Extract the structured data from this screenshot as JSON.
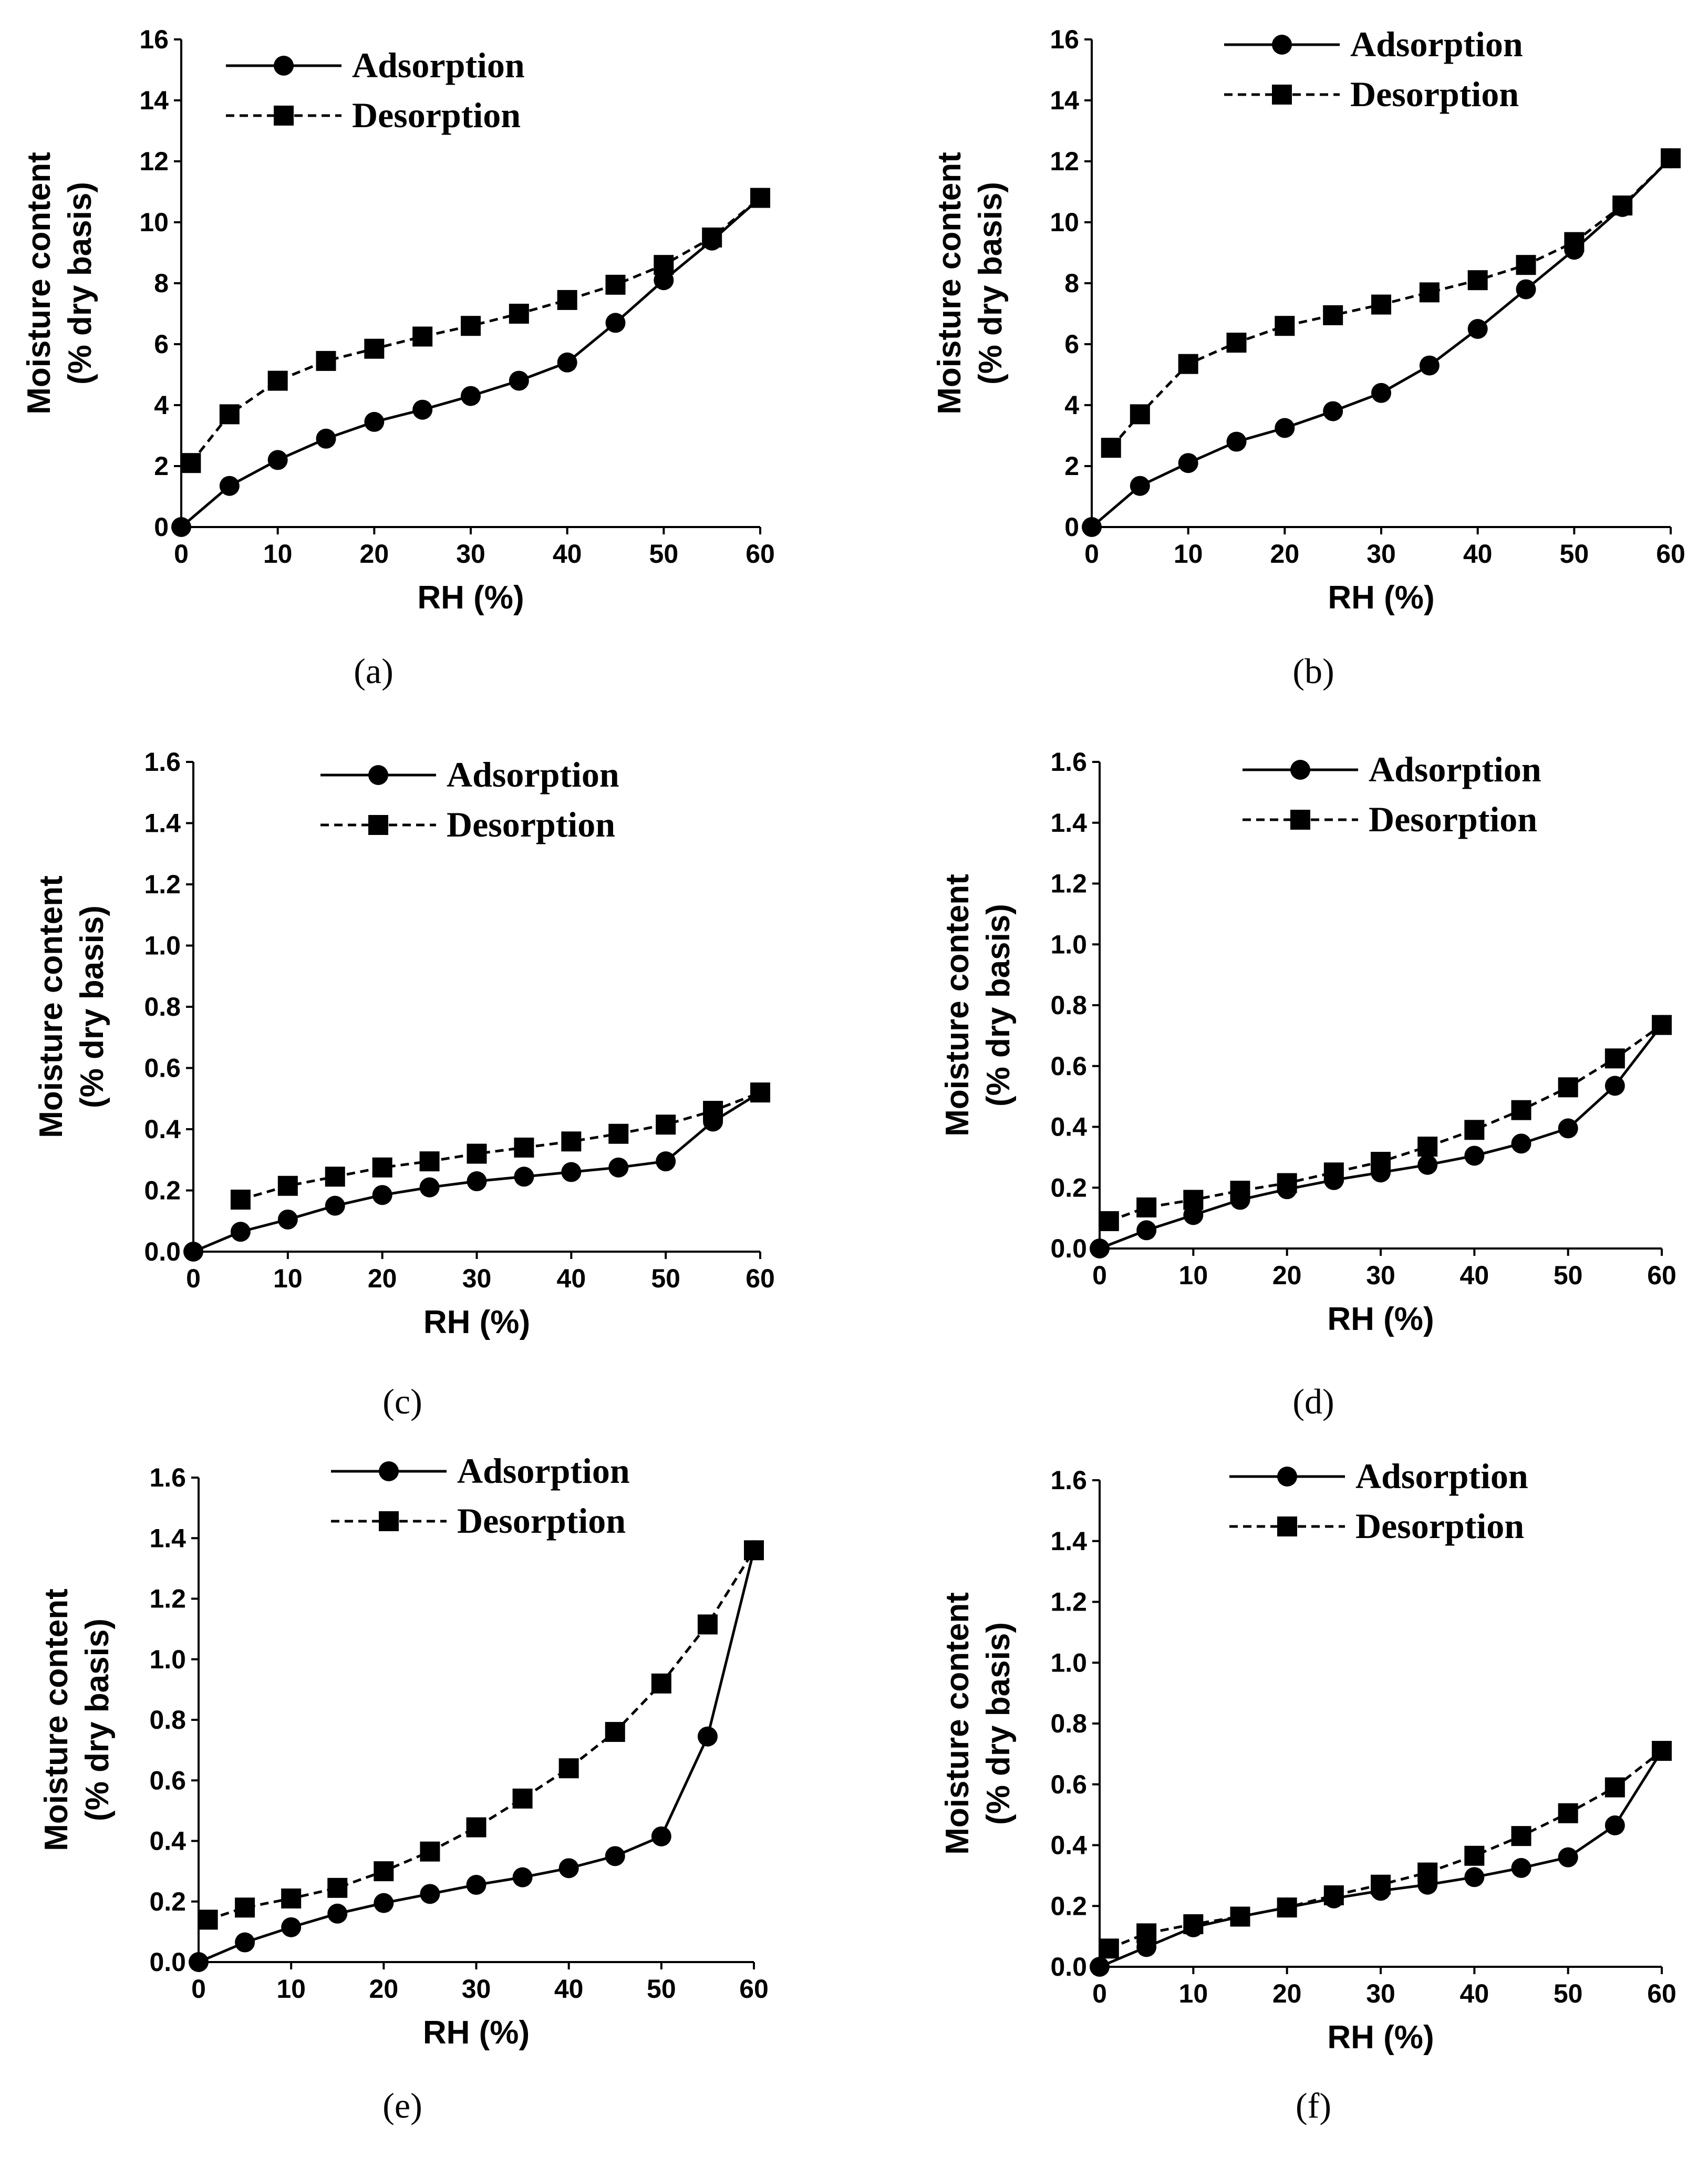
{
  "chart_data": [
    {
      "type": "line",
      "caption": "(a)",
      "xlabel": "RH (%)",
      "ylabel": [
        "Moisture content",
        "(% dry basis)"
      ],
      "xlim": [
        0,
        60
      ],
      "ylim": [
        0,
        16
      ],
      "xticks": [
        "0",
        "10",
        "20",
        "30",
        "40",
        "50",
        "60"
      ],
      "yticks": [
        "0",
        "2",
        "4",
        "6",
        "8",
        "10",
        "12",
        "14",
        "16"
      ],
      "legend": "top-left",
      "series": [
        {
          "name": "Adsorption",
          "marker": "circle",
          "style": "solid",
          "x": [
            0,
            5,
            10,
            15,
            20,
            25,
            30,
            35,
            40,
            45,
            50,
            55,
            60
          ],
          "y": [
            0,
            1.35,
            2.2,
            2.9,
            3.45,
            3.85,
            4.3,
            4.8,
            5.4,
            6.7,
            8.1,
            9.4,
            10.8
          ]
        },
        {
          "name": "Desorption",
          "marker": "square",
          "style": "dashed",
          "x": [
            1,
            5,
            10,
            15,
            20,
            25,
            30,
            35,
            40,
            45,
            50,
            55,
            60
          ],
          "y": [
            2.1,
            3.7,
            4.8,
            5.45,
            5.85,
            6.25,
            6.6,
            7.0,
            7.45,
            7.95,
            8.6,
            9.5,
            10.8
          ]
        }
      ]
    },
    {
      "type": "line",
      "caption": "(b)",
      "xlabel": "RH (%)",
      "ylabel": [
        "Moisture content",
        "(% dry basis)"
      ],
      "xlim": [
        0,
        60
      ],
      "ylim": [
        0,
        16
      ],
      "xticks": [
        "0",
        "10",
        "20",
        "30",
        "40",
        "50",
        "60"
      ],
      "yticks": [
        "0",
        "2",
        "4",
        "6",
        "8",
        "10",
        "12",
        "14",
        "16"
      ],
      "legend": "top-right",
      "series": [
        {
          "name": "Adsorption",
          "marker": "circle",
          "style": "solid",
          "x": [
            0,
            5,
            10,
            15,
            20,
            25,
            30,
            35,
            40,
            45,
            50,
            55,
            60
          ],
          "y": [
            0,
            1.35,
            2.1,
            2.8,
            3.25,
            3.8,
            4.4,
            5.3,
            6.5,
            7.8,
            9.1,
            10.5,
            12.1
          ]
        },
        {
          "name": "Desorption",
          "marker": "square",
          "style": "dashed",
          "x": [
            2,
            5,
            10,
            15,
            20,
            25,
            30,
            35,
            40,
            45,
            50,
            55,
            60
          ],
          "y": [
            2.6,
            3.7,
            5.35,
            6.05,
            6.6,
            6.95,
            7.3,
            7.7,
            8.1,
            8.6,
            9.35,
            10.55,
            12.1
          ]
        }
      ]
    },
    {
      "type": "line",
      "caption": "(c)",
      "xlabel": "RH (%)",
      "ylabel": [
        "Moisture content",
        "(% dry basis)"
      ],
      "xlim": [
        0,
        60
      ],
      "ylim": [
        0,
        1.6
      ],
      "xticks": [
        "0",
        "10",
        "20",
        "30",
        "40",
        "50",
        "60"
      ],
      "yticks": [
        "0.0",
        "0.2",
        "0.4",
        "0.6",
        "0.8",
        "1.0",
        "1.2",
        "1.4",
        "1.6"
      ],
      "legend": "top-center",
      "series": [
        {
          "name": "Adsorption",
          "marker": "circle",
          "style": "solid",
          "x": [
            0,
            5,
            10,
            15,
            20,
            25,
            30,
            35,
            40,
            45,
            50,
            55,
            60
          ],
          "y": [
            0,
            0.065,
            0.105,
            0.15,
            0.185,
            0.21,
            0.23,
            0.245,
            0.26,
            0.275,
            0.295,
            0.425,
            0.52
          ]
        },
        {
          "name": "Desorption",
          "marker": "square",
          "style": "dashed",
          "x": [
            5,
            10,
            15,
            20,
            25,
            30,
            35,
            40,
            45,
            50,
            55,
            60
          ],
          "y": [
            0.17,
            0.215,
            0.245,
            0.275,
            0.295,
            0.32,
            0.34,
            0.36,
            0.385,
            0.415,
            0.46,
            0.52
          ]
        }
      ]
    },
    {
      "type": "line",
      "caption": "(d)",
      "xlabel": "RH (%)",
      "ylabel": [
        "Moisture content",
        "(% dry basis)"
      ],
      "xlim": [
        0,
        60
      ],
      "ylim": [
        0,
        1.6
      ],
      "xticks": [
        "0",
        "10",
        "20",
        "30",
        "40",
        "50",
        "60"
      ],
      "yticks": [
        "0.0",
        "0.2",
        "0.4",
        "0.6",
        "0.8",
        "1.0",
        "1.2",
        "1.4",
        "1.6"
      ],
      "legend": "top-center",
      "series": [
        {
          "name": "Adsorption",
          "marker": "circle",
          "style": "solid",
          "x": [
            0,
            5,
            10,
            15,
            20,
            25,
            30,
            35,
            40,
            45,
            50,
            55,
            60
          ],
          "y": [
            0,
            0.06,
            0.11,
            0.16,
            0.195,
            0.225,
            0.25,
            0.275,
            0.305,
            0.345,
            0.395,
            0.535,
            0.735
          ]
        },
        {
          "name": "Desorption",
          "marker": "square",
          "style": "dashed",
          "x": [
            1,
            5,
            10,
            15,
            20,
            25,
            30,
            35,
            40,
            45,
            50,
            55,
            60
          ],
          "y": [
            0.09,
            0.135,
            0.16,
            0.19,
            0.215,
            0.25,
            0.285,
            0.335,
            0.39,
            0.455,
            0.53,
            0.625,
            0.735
          ]
        }
      ]
    },
    {
      "type": "line",
      "caption": "(e)",
      "xlabel": "RH (%)",
      "ylabel": [
        "Moisture content",
        "(% dry basis)"
      ],
      "xlim": [
        0,
        60
      ],
      "ylim": [
        0,
        1.6
      ],
      "xticks": [
        "0",
        "10",
        "20",
        "30",
        "40",
        "50",
        "60"
      ],
      "yticks": [
        "0.0",
        "0.2",
        "0.4",
        "0.6",
        "0.8",
        "1.0",
        "1.2",
        "1.4",
        "1.6"
      ],
      "legend": "top-center",
      "series": [
        {
          "name": "Adsorption",
          "marker": "circle",
          "style": "solid",
          "x": [
            0,
            5,
            10,
            15,
            20,
            25,
            30,
            35,
            40,
            45,
            50,
            55,
            60
          ],
          "y": [
            0,
            0.065,
            0.115,
            0.16,
            0.195,
            0.225,
            0.255,
            0.28,
            0.31,
            0.35,
            0.415,
            0.745,
            1.36
          ]
        },
        {
          "name": "Desorption",
          "marker": "square",
          "style": "dashed",
          "x": [
            1,
            5,
            10,
            15,
            20,
            25,
            30,
            35,
            40,
            45,
            50,
            55,
            60
          ],
          "y": [
            0.14,
            0.18,
            0.21,
            0.245,
            0.3,
            0.365,
            0.445,
            0.54,
            0.64,
            0.76,
            0.92,
            1.115,
            1.36
          ]
        }
      ]
    },
    {
      "type": "line",
      "caption": "(f)",
      "xlabel": "RH (%)",
      "ylabel": [
        "Moisture content",
        "(% dry basis)"
      ],
      "xlim": [
        0,
        60
      ],
      "ylim": [
        0,
        1.6
      ],
      "xticks": [
        "0",
        "10",
        "20",
        "30",
        "40",
        "50",
        "60"
      ],
      "yticks": [
        "0.0",
        "0.2",
        "0.4",
        "0.6",
        "0.8",
        "1.0",
        "1.2",
        "1.4",
        "1.6"
      ],
      "legend": "top-center",
      "series": [
        {
          "name": "Adsorption",
          "marker": "circle",
          "style": "solid",
          "x": [
            0,
            5,
            10,
            15,
            20,
            25,
            30,
            35,
            40,
            45,
            50,
            55,
            60
          ],
          "y": [
            0,
            0.065,
            0.13,
            0.165,
            0.195,
            0.225,
            0.25,
            0.27,
            0.295,
            0.325,
            0.36,
            0.465,
            0.71
          ]
        },
        {
          "name": "Desorption",
          "marker": "square",
          "style": "dashed",
          "x": [
            1,
            5,
            10,
            15,
            20,
            25,
            30,
            35,
            40,
            45,
            50,
            55,
            60
          ],
          "y": [
            0.06,
            0.11,
            0.14,
            0.165,
            0.195,
            0.235,
            0.27,
            0.31,
            0.365,
            0.43,
            0.505,
            0.59,
            0.71
          ]
        }
      ]
    }
  ]
}
